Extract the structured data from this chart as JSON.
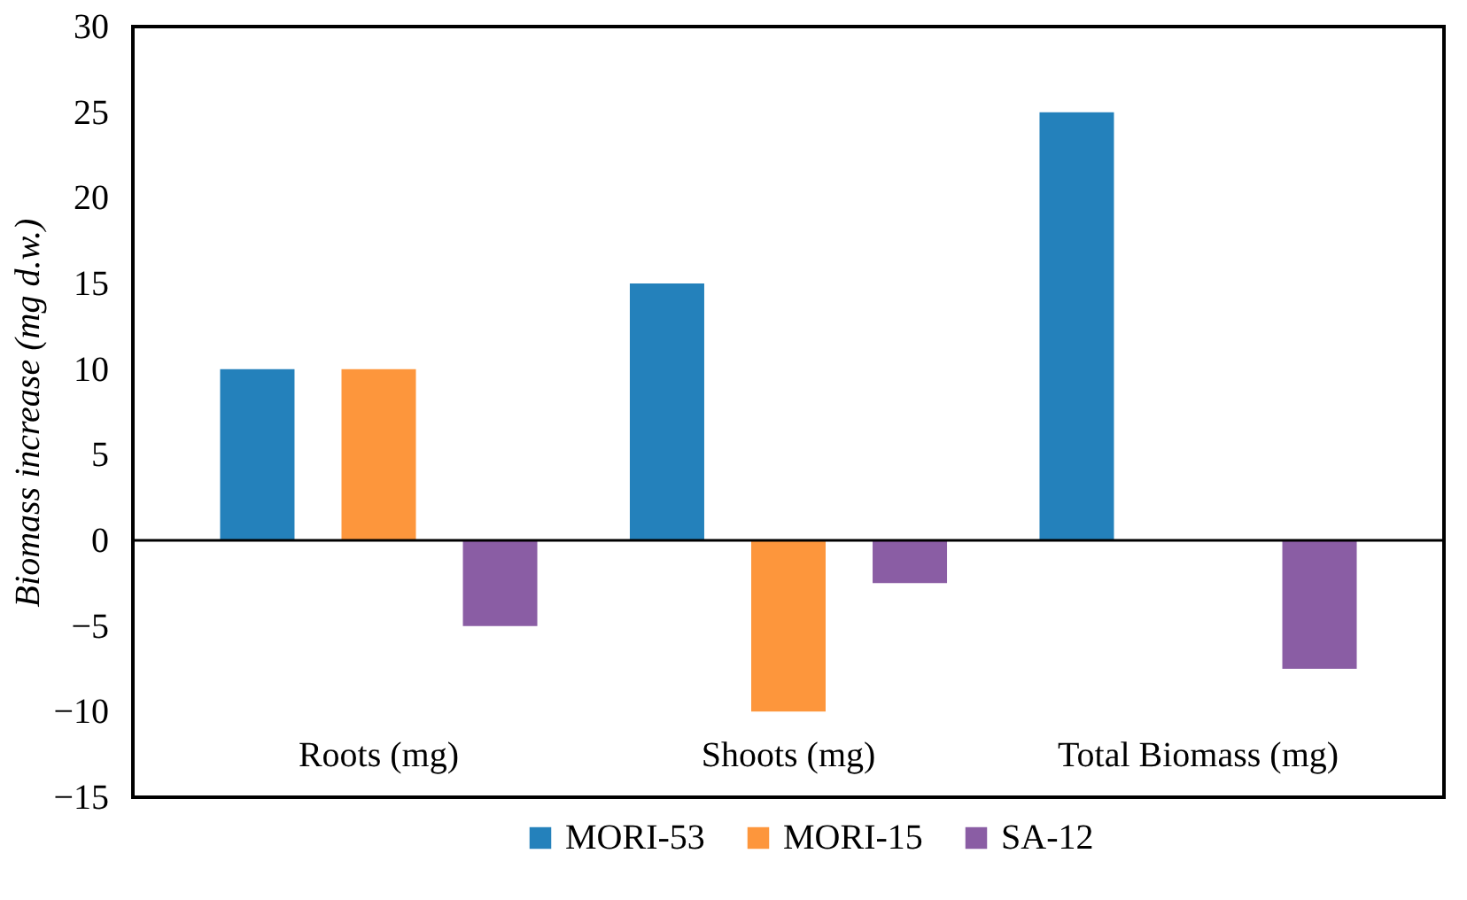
{
  "chart_data": {
    "type": "bar",
    "ylabel": "Biomass increase (mg d.w.)",
    "categories": [
      "Roots (mg)",
      "Shoots (mg)",
      "Total Biomass (mg)"
    ],
    "series": [
      {
        "name": "MORI-53",
        "color": "#2481bb",
        "values": [
          10,
          15,
          25
        ]
      },
      {
        "name": "MORI-15",
        "color": "#fd963c",
        "values": [
          10,
          -10,
          0
        ]
      },
      {
        "name": "SA-12",
        "color": "#8a5da4",
        "values": [
          -5,
          -2.5,
          -7.5
        ]
      }
    ],
    "ylim": [
      -15,
      30
    ],
    "yticks": [
      -15,
      -10,
      -5,
      0,
      5,
      10,
      15,
      20,
      25,
      30
    ],
    "legend": "bottom"
  }
}
